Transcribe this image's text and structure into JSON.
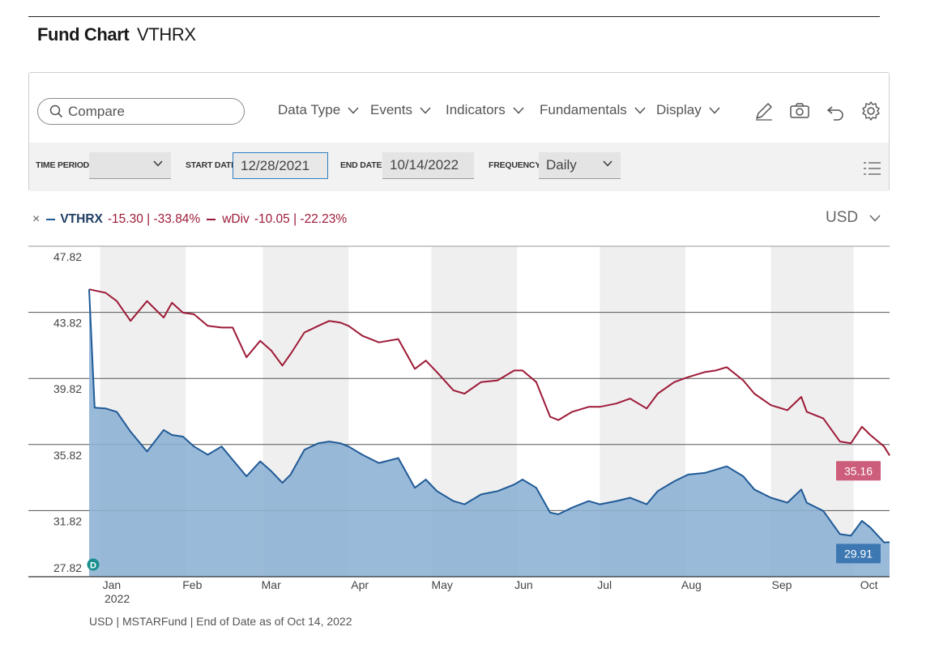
{
  "header": {
    "title": "Fund Chart",
    "ticker": "VTHRX"
  },
  "toolbar": {
    "search_placeholder": "Compare",
    "menus": [
      "Data Type",
      "Events",
      "Indicators",
      "Fundamentals",
      "Display"
    ],
    "tools": [
      "pencil-icon",
      "camera-icon",
      "undo-icon",
      "gear-icon"
    ]
  },
  "controls": {
    "time_period_label": "TIME PERIOD",
    "time_period_value": "",
    "start_date_label": "START DATE",
    "start_date_value": "12/28/2021",
    "end_date_label": "END DATE",
    "end_date_value": "10/14/2022",
    "frequency_label": "FREQUENCY",
    "frequency_value": "Daily"
  },
  "legend": {
    "close": "×",
    "series1_name": "VTHRX",
    "series1_change": "-15.30 | -33.84%",
    "series2_name": "wDiv",
    "series2_change": "-10.05 | -22.23%"
  },
  "currency": "USD",
  "footer": "USD | MSTARFund | End of Date as of Oct 14, 2022",
  "colors": {
    "price": "#1f5a96",
    "wdiv": "#9d1a37",
    "area": "#8cb0d4",
    "price_tag": "#3d78b3",
    "wdiv_tag": "#cd5e7b"
  },
  "chart_data": {
    "type": "area",
    "y_ticks": [
      "47.82",
      "43.82",
      "39.82",
      "35.82",
      "31.82",
      "27.82"
    ],
    "ylim": [
      27.82,
      47.82
    ],
    "x_ticks": [
      "Jan",
      "Feb",
      "Mar",
      "Apr",
      "May",
      "Jun",
      "Jul",
      "Aug",
      "Sep",
      "Oct"
    ],
    "x_year": "2022",
    "event_marker": "D",
    "price_tag": "29.91",
    "wdiv_tag": "35.16",
    "series": [
      {
        "name": "VTHRX",
        "x": [
          "2021-12-28",
          "2021-12-30",
          "2022-01-03",
          "2022-01-07",
          "2022-01-12",
          "2022-01-18",
          "2022-01-24",
          "2022-01-27",
          "2022-01-31",
          "2022-02-04",
          "2022-02-09",
          "2022-02-14",
          "2022-02-18",
          "2022-02-23",
          "2022-02-28",
          "2022-03-04",
          "2022-03-08",
          "2022-03-11",
          "2022-03-16",
          "2022-03-21",
          "2022-03-25",
          "2022-03-29",
          "2022-04-01",
          "2022-04-06",
          "2022-04-12",
          "2022-04-19",
          "2022-04-25",
          "2022-04-29",
          "2022-05-03",
          "2022-05-09",
          "2022-05-13",
          "2022-05-19",
          "2022-05-25",
          "2022-05-31",
          "2022-06-03",
          "2022-06-08",
          "2022-06-13",
          "2022-06-16",
          "2022-06-21",
          "2022-06-27",
          "2022-07-01",
          "2022-07-07",
          "2022-07-12",
          "2022-07-18",
          "2022-07-22",
          "2022-07-28",
          "2022-08-02",
          "2022-08-08",
          "2022-08-12",
          "2022-08-16",
          "2022-08-22",
          "2022-08-26",
          "2022-09-01",
          "2022-09-07",
          "2022-09-12",
          "2022-09-14",
          "2022-09-20",
          "2022-09-26",
          "2022-09-30",
          "2022-10-04",
          "2022-10-07",
          "2022-10-12",
          "2022-10-14"
        ],
        "values": [
          45.21,
          38.05,
          38.0,
          37.8,
          36.6,
          35.4,
          36.7,
          36.4,
          36.3,
          35.7,
          35.2,
          35.7,
          34.9,
          33.9,
          34.8,
          34.2,
          33.5,
          34.0,
          35.5,
          35.9,
          36.0,
          35.9,
          35.7,
          35.2,
          34.7,
          35.0,
          33.2,
          33.7,
          33.0,
          32.4,
          32.2,
          32.8,
          33.0,
          33.4,
          33.7,
          33.2,
          31.7,
          31.6,
          32.0,
          32.4,
          32.2,
          32.4,
          32.6,
          32.2,
          33.0,
          33.6,
          34.0,
          34.1,
          34.3,
          34.5,
          33.9,
          33.1,
          32.6,
          32.3,
          33.1,
          32.3,
          31.8,
          30.4,
          30.3,
          31.2,
          30.8,
          29.9,
          29.91
        ]
      },
      {
        "name": "wDiv",
        "x": [
          "2021-12-28",
          "2022-01-03",
          "2022-01-07",
          "2022-01-12",
          "2022-01-18",
          "2022-01-24",
          "2022-01-27",
          "2022-01-31",
          "2022-02-04",
          "2022-02-09",
          "2022-02-14",
          "2022-02-18",
          "2022-02-23",
          "2022-02-28",
          "2022-03-04",
          "2022-03-08",
          "2022-03-11",
          "2022-03-16",
          "2022-03-21",
          "2022-03-25",
          "2022-03-29",
          "2022-04-01",
          "2022-04-06",
          "2022-04-12",
          "2022-04-19",
          "2022-04-25",
          "2022-04-29",
          "2022-05-03",
          "2022-05-09",
          "2022-05-13",
          "2022-05-19",
          "2022-05-25",
          "2022-05-31",
          "2022-06-03",
          "2022-06-08",
          "2022-06-13",
          "2022-06-16",
          "2022-06-21",
          "2022-06-27",
          "2022-07-01",
          "2022-07-07",
          "2022-07-12",
          "2022-07-18",
          "2022-07-22",
          "2022-07-28",
          "2022-08-02",
          "2022-08-08",
          "2022-08-12",
          "2022-08-16",
          "2022-08-22",
          "2022-08-26",
          "2022-09-01",
          "2022-09-07",
          "2022-09-12",
          "2022-09-14",
          "2022-09-20",
          "2022-09-26",
          "2022-09-30",
          "2022-10-04",
          "2022-10-07",
          "2022-10-12",
          "2022-10-14"
        ],
        "values": [
          45.21,
          45.0,
          44.5,
          43.3,
          44.5,
          43.5,
          44.4,
          43.8,
          43.7,
          43.0,
          42.9,
          42.9,
          41.1,
          42.1,
          41.5,
          40.6,
          41.3,
          42.6,
          43.0,
          43.3,
          43.2,
          43.0,
          42.4,
          42.0,
          42.2,
          40.4,
          40.9,
          40.2,
          39.1,
          38.9,
          39.6,
          39.7,
          40.3,
          40.3,
          39.6,
          37.5,
          37.3,
          37.8,
          38.1,
          38.1,
          38.3,
          38.6,
          38.0,
          38.9,
          39.6,
          39.9,
          40.2,
          40.3,
          40.5,
          39.7,
          38.9,
          38.2,
          37.9,
          38.7,
          37.8,
          37.4,
          36.0,
          35.9,
          36.9,
          36.4,
          35.7,
          35.16
        ]
      }
    ]
  }
}
